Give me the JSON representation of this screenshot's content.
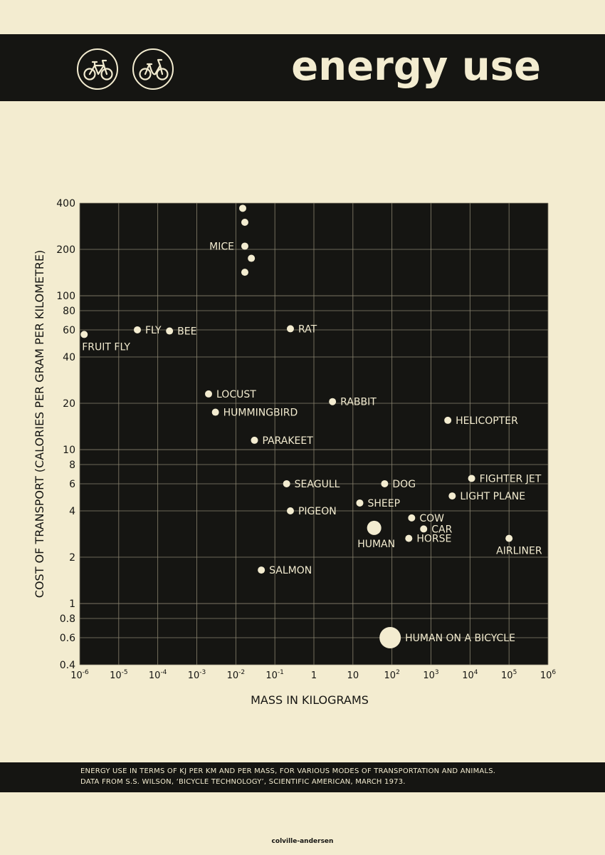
{
  "header": {
    "title": "energy use",
    "icons": [
      "bicycle-icon",
      "step-through-bicycle-icon"
    ]
  },
  "colors": {
    "dark": "#151512",
    "cream": "#f3ecd0",
    "grid": "#8a8470"
  },
  "chart_data": {
    "type": "scatter",
    "xscale": "log",
    "yscale": "log",
    "xlim": [
      1e-06,
      1000000
    ],
    "ylim": [
      0.4,
      400
    ],
    "xlabel": "MASS IN KILOGRAMS",
    "ylabel": "COST OF TRANSPORT (CALORIES PER GRAM PER KILOMETRE)",
    "grid": true,
    "x_ticks": [
      {
        "value": 1e-06,
        "base": "10",
        "exp": "-6"
      },
      {
        "value": 1e-05,
        "base": "10",
        "exp": "-5"
      },
      {
        "value": 0.0001,
        "base": "10",
        "exp": "-4"
      },
      {
        "value": 0.001,
        "base": "10",
        "exp": "-3"
      },
      {
        "value": 0.01,
        "base": "10",
        "exp": "-2"
      },
      {
        "value": 0.1,
        "base": "10",
        "exp": "-1"
      },
      {
        "value": 1,
        "base": "1",
        "exp": ""
      },
      {
        "value": 10,
        "base": "10",
        "exp": ""
      },
      {
        "value": 100,
        "base": "10",
        "exp": "2"
      },
      {
        "value": 1000,
        "base": "10",
        "exp": "3"
      },
      {
        "value": 10000,
        "base": "10",
        "exp": "4"
      },
      {
        "value": 100000,
        "base": "10",
        "exp": "5"
      },
      {
        "value": 1000000,
        "base": "10",
        "exp": "6"
      }
    ],
    "y_ticks": [
      {
        "value": 0.4,
        "label": "0.4"
      },
      {
        "value": 0.6,
        "label": "0.6"
      },
      {
        "value": 0.8,
        "label": "0.8"
      },
      {
        "value": 1,
        "label": "1"
      },
      {
        "value": 2,
        "label": "2"
      },
      {
        "value": 4,
        "label": "4"
      },
      {
        "value": 6,
        "label": "6"
      },
      {
        "value": 8,
        "label": "8"
      },
      {
        "value": 10,
        "label": "10"
      },
      {
        "value": 20,
        "label": "20"
      },
      {
        "value": 40,
        "label": "40"
      },
      {
        "value": 60,
        "label": "60"
      },
      {
        "value": 80,
        "label": "80"
      },
      {
        "value": 100,
        "label": "100"
      },
      {
        "value": 200,
        "label": "200"
      },
      {
        "value": 400,
        "label": "400"
      }
    ],
    "points": [
      {
        "label": "FRUIT FLY",
        "x": 1.3e-06,
        "y": 56,
        "label_pos": "below"
      },
      {
        "label": "FLY",
        "x": 3e-05,
        "y": 60,
        "label_pos": "right"
      },
      {
        "label": "BEE",
        "x": 0.0002,
        "y": 59,
        "label_pos": "right"
      },
      {
        "label": "MICE",
        "x": 0.017,
        "y": 210,
        "label_pos": "left"
      },
      {
        "label": "",
        "x": 0.015,
        "y": 370,
        "label_pos": "none"
      },
      {
        "label": "",
        "x": 0.017,
        "y": 300,
        "label_pos": "none"
      },
      {
        "label": "",
        "x": 0.025,
        "y": 175,
        "label_pos": "none"
      },
      {
        "label": "",
        "x": 0.017,
        "y": 142,
        "label_pos": "none"
      },
      {
        "label": "RAT",
        "x": 0.25,
        "y": 61,
        "label_pos": "right"
      },
      {
        "label": "LOCUST",
        "x": 0.002,
        "y": 23,
        "label_pos": "right"
      },
      {
        "label": "HUMMINGBIRD",
        "x": 0.003,
        "y": 17.5,
        "label_pos": "right"
      },
      {
        "label": "RABBIT",
        "x": 3,
        "y": 20.5,
        "label_pos": "right"
      },
      {
        "label": "HELICOPTER",
        "x": 2700,
        "y": 15.5,
        "label_pos": "right"
      },
      {
        "label": "PARAKEET",
        "x": 0.03,
        "y": 11.5,
        "label_pos": "right"
      },
      {
        "label": "SEAGULL",
        "x": 0.2,
        "y": 6,
        "label_pos": "right"
      },
      {
        "label": "DOG",
        "x": 65,
        "y": 6,
        "label_pos": "right"
      },
      {
        "label": "FIGHTER JET",
        "x": 11000,
        "y": 6.5,
        "label_pos": "right"
      },
      {
        "label": "LIGHT PLANE",
        "x": 3500,
        "y": 5,
        "label_pos": "right"
      },
      {
        "label": "SHEEP",
        "x": 15,
        "y": 4.5,
        "label_pos": "right"
      },
      {
        "label": "PIGEON",
        "x": 0.25,
        "y": 4,
        "label_pos": "right"
      },
      {
        "label": "COW",
        "x": 320,
        "y": 3.6,
        "label_pos": "right"
      },
      {
        "label": "CAR",
        "x": 650,
        "y": 3.05,
        "label_pos": "right"
      },
      {
        "label": "HUMAN",
        "x": 35,
        "y": 3.1,
        "label_pos": "below",
        "size": "large"
      },
      {
        "label": "HORSE",
        "x": 270,
        "y": 2.65,
        "label_pos": "right"
      },
      {
        "label": "AIRLINER",
        "x": 100000,
        "y": 2.65,
        "label_pos": "below"
      },
      {
        "label": "SALMON",
        "x": 0.045,
        "y": 1.65,
        "label_pos": "right"
      },
      {
        "label": "HUMAN ON A BICYCLE",
        "x": 90,
        "y": 0.6,
        "label_pos": "right",
        "size": "xlarge"
      }
    ]
  },
  "footer": {
    "line1": "ENERGY USE IN TERMS OF KJ PER KM AND PER MASS, FOR VARIOUS MODES OF TRANSPORTATION AND ANIMALS.",
    "line2": "DATA FROM S.S. WILSON, ‘BICYCLE TECHNOLOGY’, SCIENTIFIC AMERICAN, MARCH 1973."
  },
  "credit": "colville-andersen"
}
